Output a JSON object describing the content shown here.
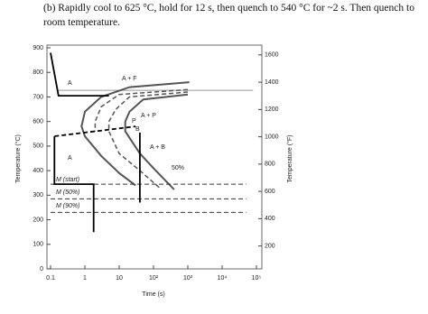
{
  "question": {
    "lines": [
      "(b) Rapidly cool to 625 °C, hold for 12 s, then quench to 540 °C for ~2 s. Then quench to",
      "room temperature."
    ]
  },
  "chart_data": {
    "type": "line",
    "xlabel": "Time (s)",
    "ylabel": "Temperature (°C)",
    "y2label": "Temperature (°F)",
    "xscale": "log",
    "xlim": [
      0.1,
      100000
    ],
    "xticks": [
      0.1,
      1,
      10,
      {
        "value": 100,
        "label": "10²"
      },
      {
        "value": 1000,
        "label": "10³"
      },
      {
        "value": 10000,
        "label": "10⁴"
      },
      {
        "value": 100000,
        "label": "10⁵"
      }
    ],
    "ylim": [
      0,
      900
    ],
    "yticks": [
      0,
      100,
      200,
      300,
      400,
      500,
      600,
      700,
      800,
      900
    ],
    "y2lim": [
      32,
      1652
    ],
    "y2ticks": [
      200,
      400,
      600,
      800,
      1000,
      1200,
      1400,
      1600
    ],
    "annotations": [
      "A",
      "A + F",
      "A + P",
      "P",
      "B",
      "A + B",
      "50%",
      "A",
      "M (start)",
      "M (50%)",
      "M (90%)"
    ],
    "series": [
      {
        "color": "#999999",
        "dash": false,
        "width": 1,
        "x": [
          0.15,
          80000
        ],
        "values": [
          727,
          727
        ]
      },
      {
        "color": "#555555",
        "dash": false,
        "width": 2,
        "x": [
          1100,
          20,
          3,
          1,
          0.8,
          1,
          3,
          10,
          30
        ],
        "values": [
          760,
          740,
          700,
          640,
          580,
          540,
          460,
          390,
          340
        ]
      },
      {
        "color": "#555555",
        "dash": true,
        "width": 1.5,
        "x": [
          1000,
          10,
          3,
          2,
          2
        ],
        "values": [
          730,
          710,
          660,
          600,
          560
        ]
      },
      {
        "color": "#555555",
        "dash": true,
        "width": 1.5,
        "x": [
          1000,
          20,
          8,
          5,
          5,
          10,
          40,
          150
        ],
        "values": [
          720,
          700,
          650,
          600,
          560,
          470,
          400,
          330
        ]
      },
      {
        "color": "#555555",
        "dash": false,
        "width": 2,
        "x": [
          1000,
          50,
          20,
          15,
          15,
          40,
          100,
          400
        ],
        "values": [
          710,
          690,
          640,
          600,
          560,
          470,
          410,
          323
        ]
      },
      {
        "color": "#333333",
        "dash": true,
        "width": 1,
        "x": [
          0.1,
          50000
        ],
        "values": [
          345,
          345
        ]
      },
      {
        "color": "#333333",
        "dash": true,
        "width": 1,
        "x": [
          0.1,
          50000
        ],
        "values": [
          285,
          285
        ]
      },
      {
        "color": "#333333",
        "dash": true,
        "width": 1,
        "x": [
          0.1,
          50000
        ],
        "values": [
          230,
          230
        ]
      },
      {
        "color": "#000000",
        "dash": false,
        "width": 1.8,
        "x": [
          0.1,
          0.17,
          5
        ],
        "values": [
          880,
          705,
          705
        ]
      },
      {
        "color": "#000000",
        "dash": true,
        "width": 1.8,
        "x": [
          0.13,
          30
        ],
        "values": [
          540,
          580
        ]
      },
      {
        "color": "#000000",
        "dash": false,
        "width": 1.8,
        "x": [
          0.13,
          0.13,
          1.8,
          1.8
        ],
        "values": [
          540,
          345,
          345,
          150
        ]
      },
      {
        "color": "#000000",
        "dash": false,
        "width": 1.8,
        "x": [
          40,
          40
        ],
        "values": [
          555,
          270
        ]
      }
    ]
  }
}
